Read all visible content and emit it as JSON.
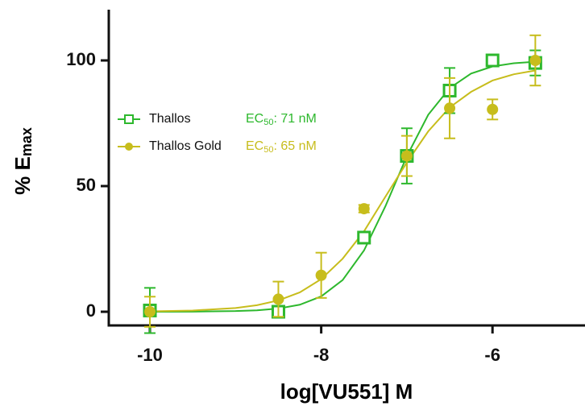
{
  "chart_data": {
    "type": "scatter",
    "xlabel": "log[VU551] M",
    "ylabel": {
      "main": "% E",
      "subscript": "max"
    },
    "xlim": [
      -10.48,
      -4.92
    ],
    "ylim": [
      -5.45,
      120.2
    ],
    "xticks": [
      -10,
      -8,
      -6
    ],
    "yticks": [
      0,
      50,
      100
    ],
    "legend": "upper left",
    "series": [
      {
        "name": "Thallos",
        "color": "#2db82d",
        "marker": "square",
        "annotation": {
          "prefix": "EC",
          "subscript": "50",
          "suffix": ": 71 nM"
        },
        "x": [
          -10,
          -8.5,
          -7.5,
          -7,
          -6.5,
          -6,
          -5.5
        ],
        "values": [
          0.5,
          0,
          29.5,
          62,
          88,
          100,
          99
        ],
        "errors": [
          9,
          1.5,
          1.5,
          11,
          9,
          1.5,
          5
        ],
        "fit": {
          "x": [
            -10,
            -9.5,
            -9,
            -8.75,
            -8.5,
            -8.25,
            -8,
            -7.75,
            -7.5,
            -7.25,
            -7,
            -6.75,
            -6.5,
            -6.25,
            -6,
            -5.75,
            -5.5
          ],
          "values": [
            0,
            0.05,
            0.26,
            0.57,
            1.27,
            2.8,
            6.1,
            12.6,
            24.4,
            42,
            61.9,
            78.4,
            89,
            94.8,
            97.6,
            98.9,
            99.5
          ]
        }
      },
      {
        "name": "Thallos Gold",
        "color": "#c7bd1c",
        "marker": "circle",
        "annotation": {
          "prefix": "EC",
          "subscript": "50",
          "suffix": ": 65 nM"
        },
        "x": [
          -10,
          -8.5,
          -8,
          -7.5,
          -7,
          -6.5,
          -6,
          -5.5
        ],
        "values": [
          0,
          5,
          14.5,
          41,
          62,
          81,
          80.5,
          100
        ],
        "errors": [
          6,
          7,
          9,
          1.5,
          8,
          12,
          4,
          10
        ],
        "fit": {
          "x": [
            -10,
            -9.5,
            -9,
            -8.75,
            -8.5,
            -8.25,
            -8,
            -7.75,
            -7.5,
            -7.25,
            -7,
            -6.75,
            -6.5,
            -6.25,
            -6,
            -5.75,
            -5.5
          ],
          "values": [
            0.15,
            0.48,
            1.5,
            2.6,
            4.5,
            7.7,
            13,
            21.1,
            32,
            45.8,
            59.4,
            71.8,
            81.3,
            87.5,
            92,
            94.5,
            96
          ]
        }
      }
    ]
  }
}
